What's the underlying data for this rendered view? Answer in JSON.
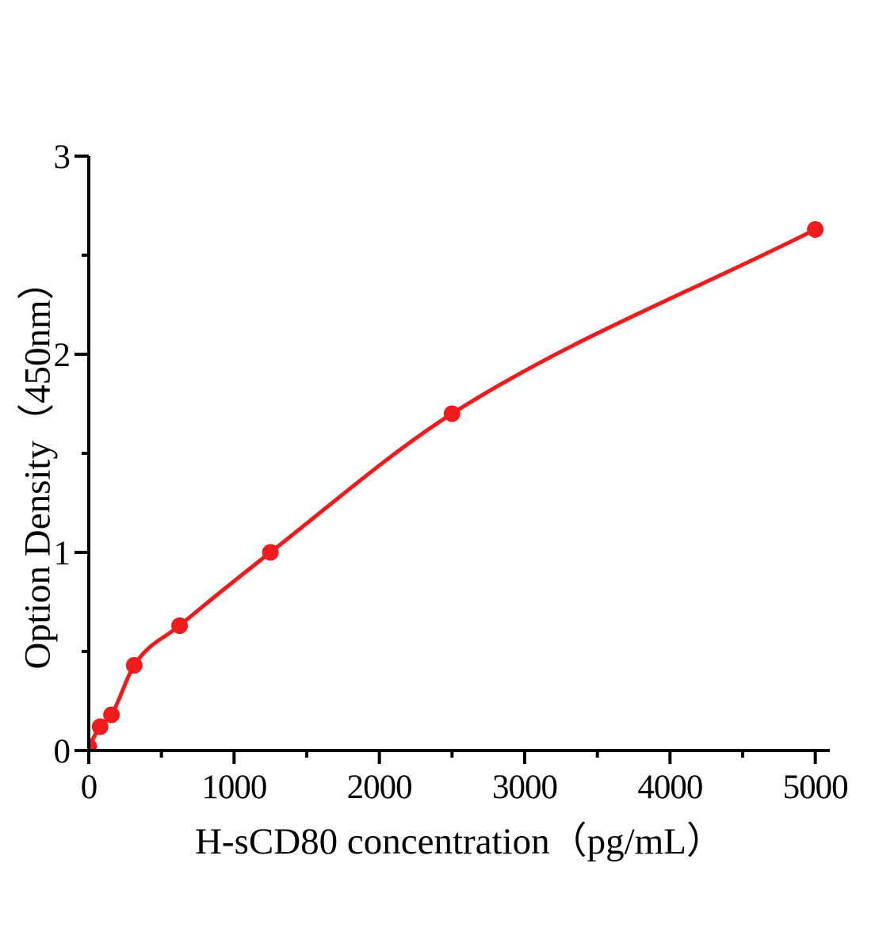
{
  "figure": {
    "background": "#ffffff"
  },
  "chart_data": {
    "type": "line",
    "title": "",
    "xlabel": "H-sCD80 concentration（pg/mL）",
    "ylabel": "Option Density（450nm）",
    "x": [
      0,
      78.1,
      156.3,
      312.5,
      625,
      1250,
      2500,
      5000
    ],
    "y": [
      0.02,
      0.12,
      0.18,
      0.43,
      0.63,
      1.0,
      1.7,
      2.63
    ],
    "markers": true,
    "xlim": [
      0,
      5100
    ],
    "ylim": [
      0,
      3
    ],
    "x_major_ticks": [
      0,
      1000,
      2000,
      3000,
      4000,
      5000
    ],
    "x_minor_ticks": [
      500,
      1500,
      2500,
      3500,
      4500
    ],
    "y_major_ticks": [
      0,
      1,
      2,
      3
    ],
    "y_minor_ticks": [
      0.5,
      1.5,
      2.5
    ],
    "grid": false,
    "legend": "none",
    "colors": {
      "curve": "#ee1c1c",
      "marker": "#ee1c1c",
      "axis": "#000000",
      "background": "#ffffff"
    }
  }
}
